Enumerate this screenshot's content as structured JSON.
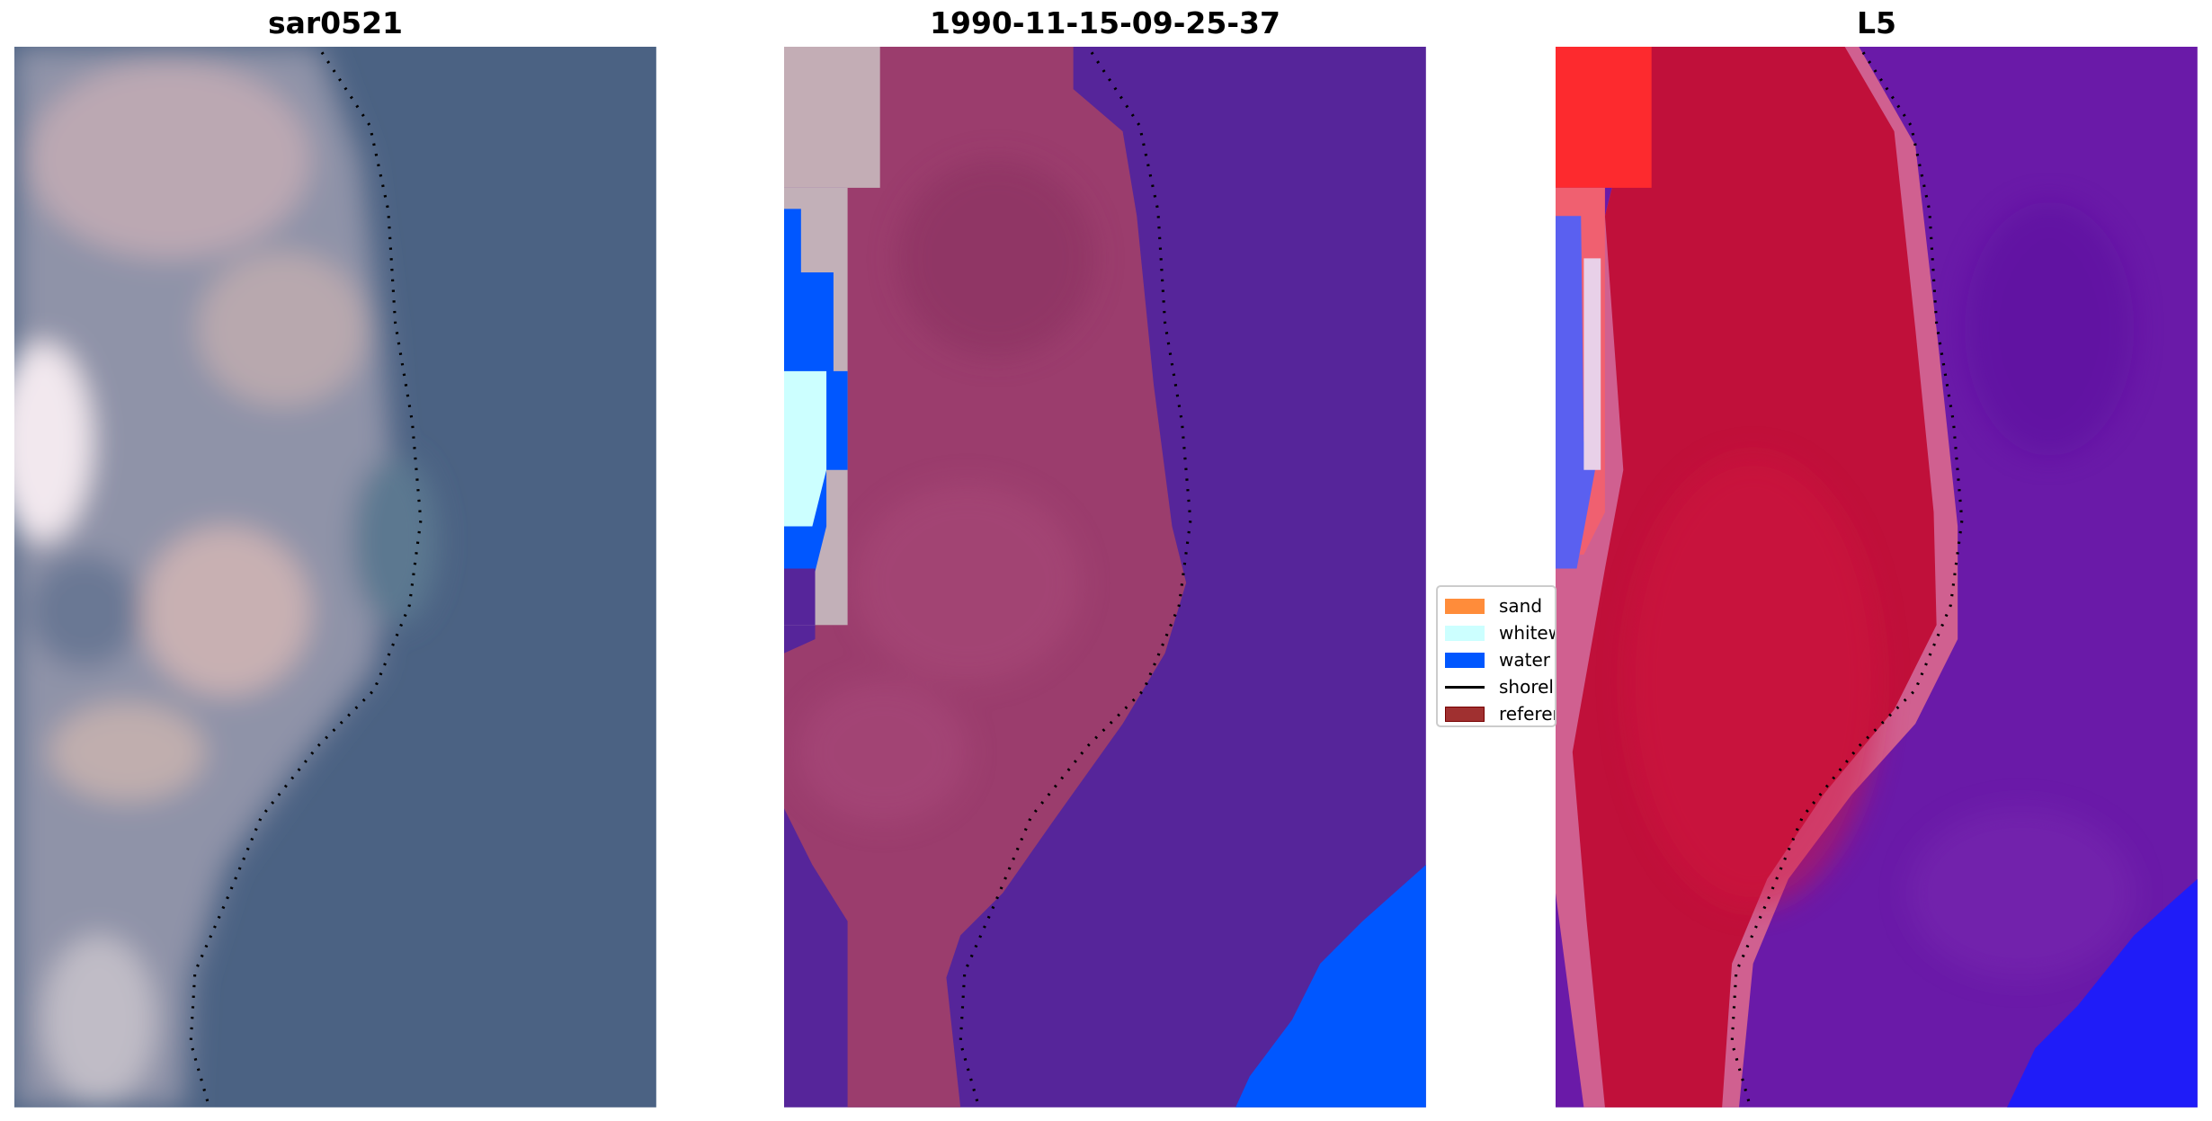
{
  "panels": [
    {
      "title": "sar0521"
    },
    {
      "title": "1990-11-15-09-25-37"
    },
    {
      "title": "L5"
    }
  ],
  "legend": {
    "items": [
      {
        "label": "sand",
        "color": "#ff8c3a",
        "kind": "patch"
      },
      {
        "label": "whitew",
        "color": "#ccffff",
        "kind": "patch"
      },
      {
        "label": "water",
        "color": "#0057ff",
        "kind": "patch"
      },
      {
        "label": "shorel",
        "color": "#000000",
        "kind": "line"
      },
      {
        "label": "referer",
        "color": "#a03030",
        "kind": "patch"
      }
    ]
  },
  "colors": {
    "water_class": "#0057ff",
    "land_overlay": "#9c3f6e",
    "sea_overlay": "#56259a",
    "l5_land": "#c0103a",
    "l5_sea": "#6a1aa8"
  }
}
